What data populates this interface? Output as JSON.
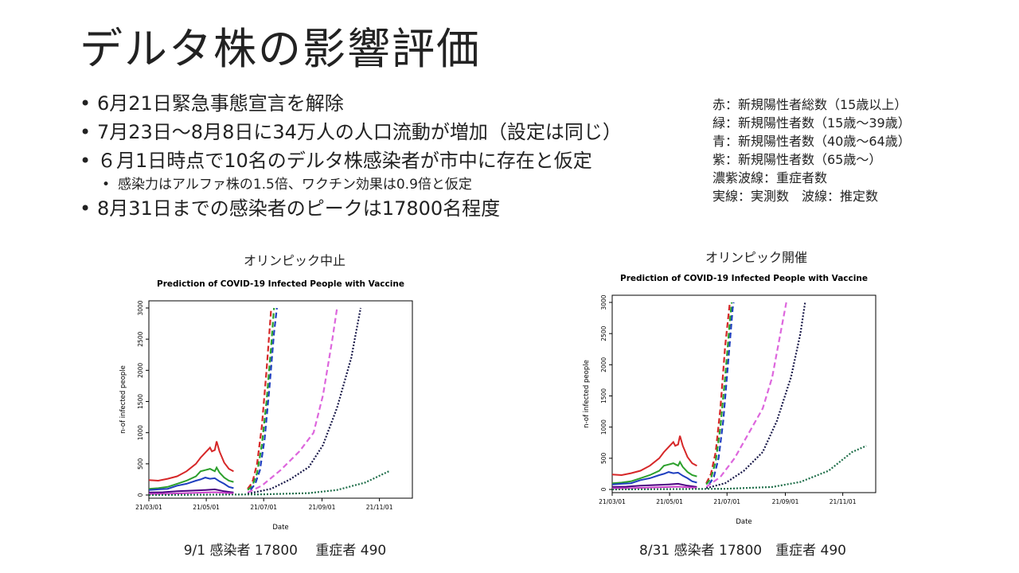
{
  "slide": {
    "title": "デルタ株の影響評価",
    "bullets": [
      {
        "text": "6月21日緊急事態宣言を解除",
        "level": 1
      },
      {
        "text": "7月23日～8月8日に34万人の人口流動が増加（設定は同じ）",
        "level": 1
      },
      {
        "text": " ６月1日時点で10名のデルタ株感染者が市中に存在と仮定",
        "level": 1
      },
      {
        "text": "感染力はアルファ株の1.5倍、ワクチン効果は0.9倍と仮定",
        "level": 2
      },
      {
        "text": "8月31日までの感染者のピークは17800名程度",
        "level": 1
      }
    ],
    "legend_notes": [
      "赤：新規陽性者総数（15歳以上）",
      "緑：新規陽性者数（15歳～39歳）",
      "青：新規陽性者数（40歳～64歳）",
      "紫：新規陽性者数（65歳～）",
      "濃紫波線：重症者数",
      "実線：実測数　波線：推定数"
    ],
    "panels": [
      {
        "caption": "オリンピック中止",
        "footer": "9/1 感染者 17800　 重症者 490"
      },
      {
        "caption": "オリンピック開催",
        "footer": "8/31 感染者 17800　重症者 490"
      }
    ]
  },
  "chart_data": [
    {
      "type": "line",
      "title": "Prediction of COVID-19 Infected People with Vaccine",
      "xlabel": "Date",
      "ylabel": "n-of infected people",
      "ylim": [
        0,
        3000
      ],
      "yticks": [
        0,
        500,
        1000,
        1500,
        2000,
        2500,
        3000
      ],
      "xticks": [
        "21/03/01",
        "21/05/01",
        "21/07/01",
        "21/09/01",
        "21/11/01"
      ],
      "x_unit": "days from 21/03/01",
      "grid": false,
      "series": [
        {
          "color": "#d62728",
          "dash": false,
          "points": [
            [
              0,
              240
            ],
            [
              10,
              230
            ],
            [
              20,
              260
            ],
            [
              30,
              300
            ],
            [
              40,
              380
            ],
            [
              50,
              500
            ],
            [
              55,
              600
            ],
            [
              60,
              680
            ],
            [
              65,
              760
            ],
            [
              67,
              700
            ],
            [
              70,
              720
            ],
            [
              72,
              860
            ],
            [
              75,
              700
            ],
            [
              80,
              520
            ],
            [
              85,
              420
            ],
            [
              90,
              380
            ]
          ]
        },
        {
          "color": "#2ca02c",
          "dash": false,
          "points": [
            [
              0,
              100
            ],
            [
              10,
              110
            ],
            [
              20,
              130
            ],
            [
              30,
              180
            ],
            [
              40,
              230
            ],
            [
              50,
              300
            ],
            [
              55,
              380
            ],
            [
              60,
              400
            ],
            [
              65,
              420
            ],
            [
              70,
              380
            ],
            [
              72,
              440
            ],
            [
              75,
              360
            ],
            [
              80,
              280
            ],
            [
              85,
              230
            ],
            [
              90,
              210
            ]
          ]
        },
        {
          "color": "#1f3fbf",
          "dash": false,
          "points": [
            [
              0,
              80
            ],
            [
              10,
              90
            ],
            [
              20,
              100
            ],
            [
              30,
              150
            ],
            [
              40,
              180
            ],
            [
              50,
              230
            ],
            [
              55,
              250
            ],
            [
              60,
              280
            ],
            [
              65,
              260
            ],
            [
              70,
              270
            ],
            [
              75,
              220
            ],
            [
              80,
              180
            ],
            [
              85,
              130
            ],
            [
              90,
              110
            ]
          ]
        },
        {
          "color": "#4b0082",
          "dash": false,
          "points": [
            [
              0,
              40
            ],
            [
              15,
              45
            ],
            [
              30,
              60
            ],
            [
              45,
              70
            ],
            [
              60,
              80
            ],
            [
              70,
              90
            ],
            [
              80,
              60
            ],
            [
              90,
              40
            ]
          ]
        },
        {
          "color": "#cc44cc",
          "dash": false,
          "points": [
            [
              0,
              15
            ],
            [
              20,
              20
            ],
            [
              40,
              30
            ],
            [
              60,
              40
            ],
            [
              70,
              45
            ],
            [
              80,
              35
            ],
            [
              90,
              25
            ]
          ]
        },
        {
          "color": "#d62728",
          "dash": true,
          "points": [
            [
              105,
              100
            ],
            [
              110,
              200
            ],
            [
              115,
              500
            ],
            [
              120,
              1100
            ],
            [
              125,
              2000
            ],
            [
              130,
              3000
            ]
          ]
        },
        {
          "color": "#2ca02c",
          "dash": true,
          "points": [
            [
              105,
              80
            ],
            [
              110,
              150
            ],
            [
              115,
              350
            ],
            [
              120,
              800
            ],
            [
              125,
              1500
            ],
            [
              130,
              2400
            ],
            [
              133,
              3000
            ]
          ]
        },
        {
          "color": "#1f3fbf",
          "dash": true,
          "points": [
            [
              108,
              80
            ],
            [
              113,
              180
            ],
            [
              118,
              400
            ],
            [
              123,
              900
            ],
            [
              128,
              1700
            ],
            [
              133,
              2600
            ],
            [
              136,
              3000
            ]
          ]
        },
        {
          "color": "#dd66dd",
          "dash": true,
          "points": [
            [
              105,
              40
            ],
            [
              120,
              150
            ],
            [
              140,
              400
            ],
            [
              160,
              700
            ],
            [
              175,
              1000
            ],
            [
              185,
              1600
            ],
            [
              195,
              2500
            ],
            [
              200,
              3000
            ]
          ]
        },
        {
          "color": "#1a1a4a",
          "dash": true,
          "points": [
            [
              105,
              20
            ],
            [
              130,
              100
            ],
            [
              150,
              250
            ],
            [
              170,
              450
            ],
            [
              185,
              800
            ],
            [
              200,
              1400
            ],
            [
              215,
              2200
            ],
            [
              225,
              3000
            ]
          ]
        },
        {
          "color": "#1f6e4a",
          "dash": true,
          "points": [
            [
              0,
              0
            ],
            [
              60,
              5
            ],
            [
              120,
              10
            ],
            [
              170,
              30
            ],
            [
              200,
              80
            ],
            [
              230,
              200
            ],
            [
              255,
              380
            ]
          ]
        }
      ]
    },
    {
      "type": "line",
      "title": "Prediction of COVID-19 Infected People with Vaccine",
      "xlabel": "Date",
      "ylabel": "n-of infected people",
      "ylim": [
        0,
        3000
      ],
      "yticks": [
        0,
        500,
        1000,
        1500,
        2000,
        2500,
        3000
      ],
      "xticks": [
        "21/03/01",
        "21/05/01",
        "21/07/01",
        "21/09/01",
        "21/11/01"
      ],
      "x_unit": "days from 21/03/01",
      "grid": false,
      "series": [
        {
          "color": "#d62728",
          "dash": false,
          "points": [
            [
              0,
              240
            ],
            [
              10,
              230
            ],
            [
              20,
              260
            ],
            [
              30,
              300
            ],
            [
              40,
              380
            ],
            [
              50,
              500
            ],
            [
              55,
              600
            ],
            [
              60,
              680
            ],
            [
              65,
              760
            ],
            [
              67,
              700
            ],
            [
              70,
              720
            ],
            [
              72,
              860
            ],
            [
              75,
              700
            ],
            [
              80,
              520
            ],
            [
              85,
              420
            ],
            [
              90,
              380
            ]
          ]
        },
        {
          "color": "#2ca02c",
          "dash": false,
          "points": [
            [
              0,
              100
            ],
            [
              10,
              110
            ],
            [
              20,
              130
            ],
            [
              30,
              180
            ],
            [
              40,
              230
            ],
            [
              50,
              300
            ],
            [
              55,
              380
            ],
            [
              60,
              400
            ],
            [
              65,
              420
            ],
            [
              70,
              380
            ],
            [
              72,
              440
            ],
            [
              75,
              360
            ],
            [
              80,
              280
            ],
            [
              85,
              230
            ],
            [
              90,
              210
            ]
          ]
        },
        {
          "color": "#1f3fbf",
          "dash": false,
          "points": [
            [
              0,
              80
            ],
            [
              10,
              90
            ],
            [
              20,
              100
            ],
            [
              30,
              150
            ],
            [
              40,
              180
            ],
            [
              50,
              230
            ],
            [
              55,
              250
            ],
            [
              60,
              280
            ],
            [
              65,
              260
            ],
            [
              70,
              270
            ],
            [
              75,
              220
            ],
            [
              80,
              180
            ],
            [
              85,
              130
            ],
            [
              90,
              110
            ]
          ]
        },
        {
          "color": "#4b0082",
          "dash": false,
          "points": [
            [
              0,
              40
            ],
            [
              15,
              45
            ],
            [
              30,
              60
            ],
            [
              45,
              70
            ],
            [
              60,
              80
            ],
            [
              70,
              90
            ],
            [
              80,
              60
            ],
            [
              90,
              40
            ]
          ]
        },
        {
          "color": "#cc44cc",
          "dash": false,
          "points": [
            [
              0,
              15
            ],
            [
              20,
              20
            ],
            [
              40,
              30
            ],
            [
              60,
              40
            ],
            [
              70,
              45
            ],
            [
              80,
              35
            ],
            [
              90,
              25
            ]
          ]
        },
        {
          "color": "#d62728",
          "dash": true,
          "points": [
            [
              100,
              100
            ],
            [
              105,
              250
            ],
            [
              110,
              600
            ],
            [
              115,
              1300
            ],
            [
              120,
              2300
            ],
            [
              125,
              3000
            ]
          ]
        },
        {
          "color": "#2ca02c",
          "dash": true,
          "points": [
            [
              100,
              80
            ],
            [
              105,
              180
            ],
            [
              110,
              450
            ],
            [
              115,
              1000
            ],
            [
              120,
              1800
            ],
            [
              125,
              2700
            ],
            [
              127,
              3000
            ]
          ]
        },
        {
          "color": "#1f3fbf",
          "dash": true,
          "points": [
            [
              103,
              80
            ],
            [
              108,
              200
            ],
            [
              113,
              500
            ],
            [
              118,
              1100
            ],
            [
              123,
              2000
            ],
            [
              128,
              2900
            ],
            [
              129,
              3000
            ]
          ]
        },
        {
          "color": "#dd66dd",
          "dash": true,
          "points": [
            [
              100,
              40
            ],
            [
              115,
              200
            ],
            [
              130,
              500
            ],
            [
              145,
              900
            ],
            [
              160,
              1300
            ],
            [
              170,
              1800
            ],
            [
              180,
              2600
            ],
            [
              185,
              3000
            ]
          ]
        },
        {
          "color": "#1a1a4a",
          "dash": true,
          "points": [
            [
              100,
              20
            ],
            [
              120,
              100
            ],
            [
              140,
              300
            ],
            [
              160,
              600
            ],
            [
              175,
              1100
            ],
            [
              190,
              1800
            ],
            [
              200,
              2500
            ],
            [
              205,
              3000
            ]
          ]
        },
        {
          "color": "#1f6e4a",
          "dash": true,
          "points": [
            [
              0,
              0
            ],
            [
              60,
              5
            ],
            [
              120,
              10
            ],
            [
              170,
              40
            ],
            [
              200,
              120
            ],
            [
              230,
              300
            ],
            [
              255,
              600
            ],
            [
              270,
              700
            ]
          ]
        }
      ]
    }
  ]
}
